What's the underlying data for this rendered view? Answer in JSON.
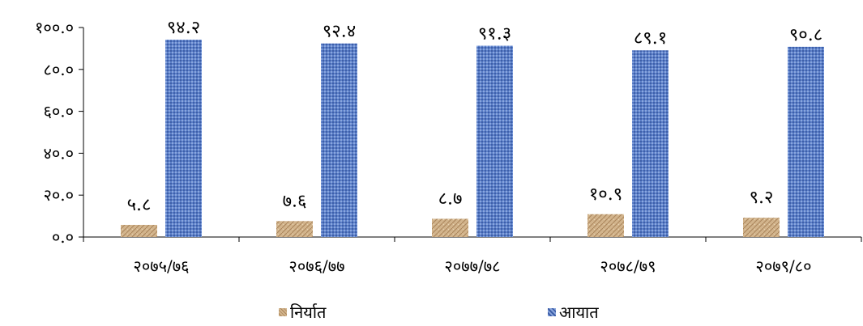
{
  "chart_data": {
    "type": "bar",
    "categories": [
      "२०७५/७६",
      "२०७६/७७",
      "२०७७/७८",
      "२०७८/७९",
      "२०७९/८०"
    ],
    "series": [
      {
        "name": "निर्यात",
        "values": [
          5.8,
          7.6,
          8.7,
          10.9,
          9.2
        ],
        "labels": [
          "५.८",
          "७.६",
          "८.७",
          "१०.९",
          "९.२"
        ],
        "color": "#c9a877"
      },
      {
        "name": "आयात",
        "values": [
          94.2,
          92.4,
          91.3,
          89.1,
          90.8
        ],
        "labels": [
          "९४.२",
          "९२.४",
          "९१.३",
          "८९.१",
          "९०.८"
        ],
        "color": "#4a6fc0"
      }
    ],
    "yticks": [
      0,
      20,
      40,
      60,
      80,
      100
    ],
    "ytick_labels": [
      "०.०",
      "२०.०",
      "४०.०",
      "६०.०",
      "८०.०",
      "१००.०"
    ],
    "ylim": [
      0,
      100
    ],
    "title": "",
    "xlabel": "",
    "ylabel": "",
    "grid": false,
    "legend": "bottom"
  }
}
